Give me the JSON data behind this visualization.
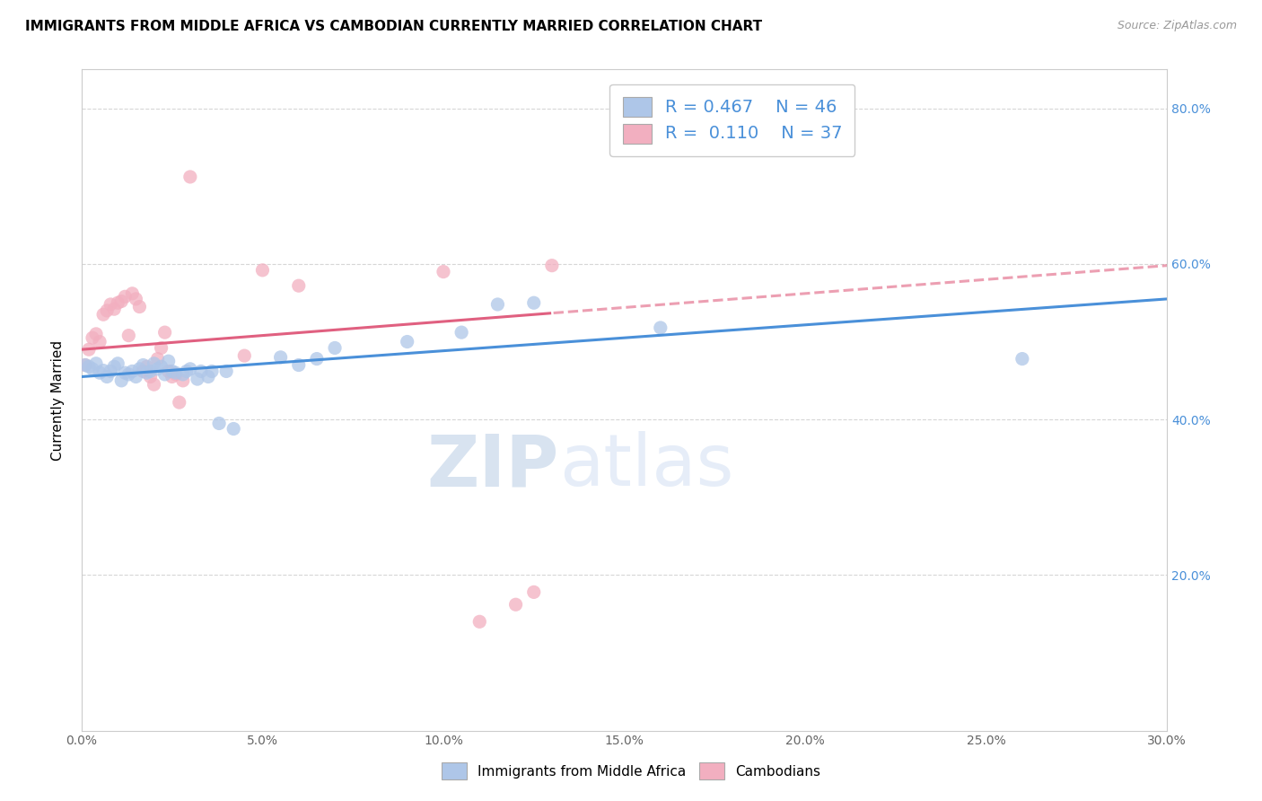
{
  "title": "IMMIGRANTS FROM MIDDLE AFRICA VS CAMBODIAN CURRENTLY MARRIED CORRELATION CHART",
  "source": "Source: ZipAtlas.com",
  "ylabel": "Currently Married",
  "xlim": [
    0.0,
    0.3
  ],
  "ylim": [
    0.0,
    0.85
  ],
  "xtick_labels": [
    "0.0%",
    "5.0%",
    "10.0%",
    "15.0%",
    "20.0%",
    "25.0%",
    "30.0%"
  ],
  "xtick_vals": [
    0.0,
    0.05,
    0.1,
    0.15,
    0.2,
    0.25,
    0.3
  ],
  "ytick_labels": [
    "20.0%",
    "40.0%",
    "60.0%",
    "80.0%"
  ],
  "ytick_vals": [
    0.2,
    0.4,
    0.6,
    0.8
  ],
  "blue_R": "0.467",
  "blue_N": "46",
  "pink_R": "0.110",
  "pink_N": "37",
  "blue_color": "#aec6e8",
  "pink_color": "#f2afc0",
  "blue_line_color": "#4a90d9",
  "pink_line_color": "#e06080",
  "blue_scatter": [
    [
      0.001,
      0.47
    ],
    [
      0.002,
      0.468
    ],
    [
      0.003,
      0.465
    ],
    [
      0.004,
      0.472
    ],
    [
      0.005,
      0.46
    ],
    [
      0.006,
      0.463
    ],
    [
      0.007,
      0.455
    ],
    [
      0.008,
      0.462
    ],
    [
      0.009,
      0.468
    ],
    [
      0.01,
      0.472
    ],
    [
      0.011,
      0.45
    ],
    [
      0.012,
      0.46
    ],
    [
      0.013,
      0.458
    ],
    [
      0.014,
      0.462
    ],
    [
      0.015,
      0.455
    ],
    [
      0.016,
      0.465
    ],
    [
      0.017,
      0.47
    ],
    [
      0.018,
      0.46
    ],
    [
      0.019,
      0.462
    ],
    [
      0.02,
      0.472
    ],
    [
      0.021,
      0.465
    ],
    [
      0.022,
      0.468
    ],
    [
      0.023,
      0.458
    ],
    [
      0.024,
      0.475
    ],
    [
      0.025,
      0.462
    ],
    [
      0.026,
      0.46
    ],
    [
      0.028,
      0.458
    ],
    [
      0.029,
      0.462
    ],
    [
      0.03,
      0.465
    ],
    [
      0.032,
      0.452
    ],
    [
      0.033,
      0.462
    ],
    [
      0.035,
      0.455
    ],
    [
      0.036,
      0.462
    ],
    [
      0.038,
      0.395
    ],
    [
      0.04,
      0.462
    ],
    [
      0.042,
      0.388
    ],
    [
      0.055,
      0.48
    ],
    [
      0.06,
      0.47
    ],
    [
      0.065,
      0.478
    ],
    [
      0.07,
      0.492
    ],
    [
      0.09,
      0.5
    ],
    [
      0.105,
      0.512
    ],
    [
      0.115,
      0.548
    ],
    [
      0.125,
      0.55
    ],
    [
      0.16,
      0.518
    ],
    [
      0.26,
      0.478
    ]
  ],
  "pink_scatter": [
    [
      0.001,
      0.47
    ],
    [
      0.002,
      0.49
    ],
    [
      0.003,
      0.505
    ],
    [
      0.004,
      0.51
    ],
    [
      0.005,
      0.5
    ],
    [
      0.006,
      0.535
    ],
    [
      0.007,
      0.54
    ],
    [
      0.008,
      0.548
    ],
    [
      0.009,
      0.542
    ],
    [
      0.01,
      0.55
    ],
    [
      0.011,
      0.552
    ],
    [
      0.012,
      0.558
    ],
    [
      0.013,
      0.508
    ],
    [
      0.014,
      0.562
    ],
    [
      0.015,
      0.555
    ],
    [
      0.016,
      0.545
    ],
    [
      0.017,
      0.462
    ],
    [
      0.018,
      0.468
    ],
    [
      0.019,
      0.455
    ],
    [
      0.02,
      0.445
    ],
    [
      0.021,
      0.478
    ],
    [
      0.022,
      0.492
    ],
    [
      0.023,
      0.512
    ],
    [
      0.024,
      0.462
    ],
    [
      0.025,
      0.455
    ],
    [
      0.026,
      0.458
    ],
    [
      0.027,
      0.422
    ],
    [
      0.028,
      0.45
    ],
    [
      0.03,
      0.712
    ],
    [
      0.045,
      0.482
    ],
    [
      0.05,
      0.592
    ],
    [
      0.06,
      0.572
    ],
    [
      0.1,
      0.59
    ],
    [
      0.11,
      0.14
    ],
    [
      0.12,
      0.162
    ],
    [
      0.125,
      0.178
    ],
    [
      0.13,
      0.598
    ]
  ],
  "watermark_zip": "ZIP",
  "watermark_atlas": "atlas",
  "watermark_color": "#c8d8f0"
}
